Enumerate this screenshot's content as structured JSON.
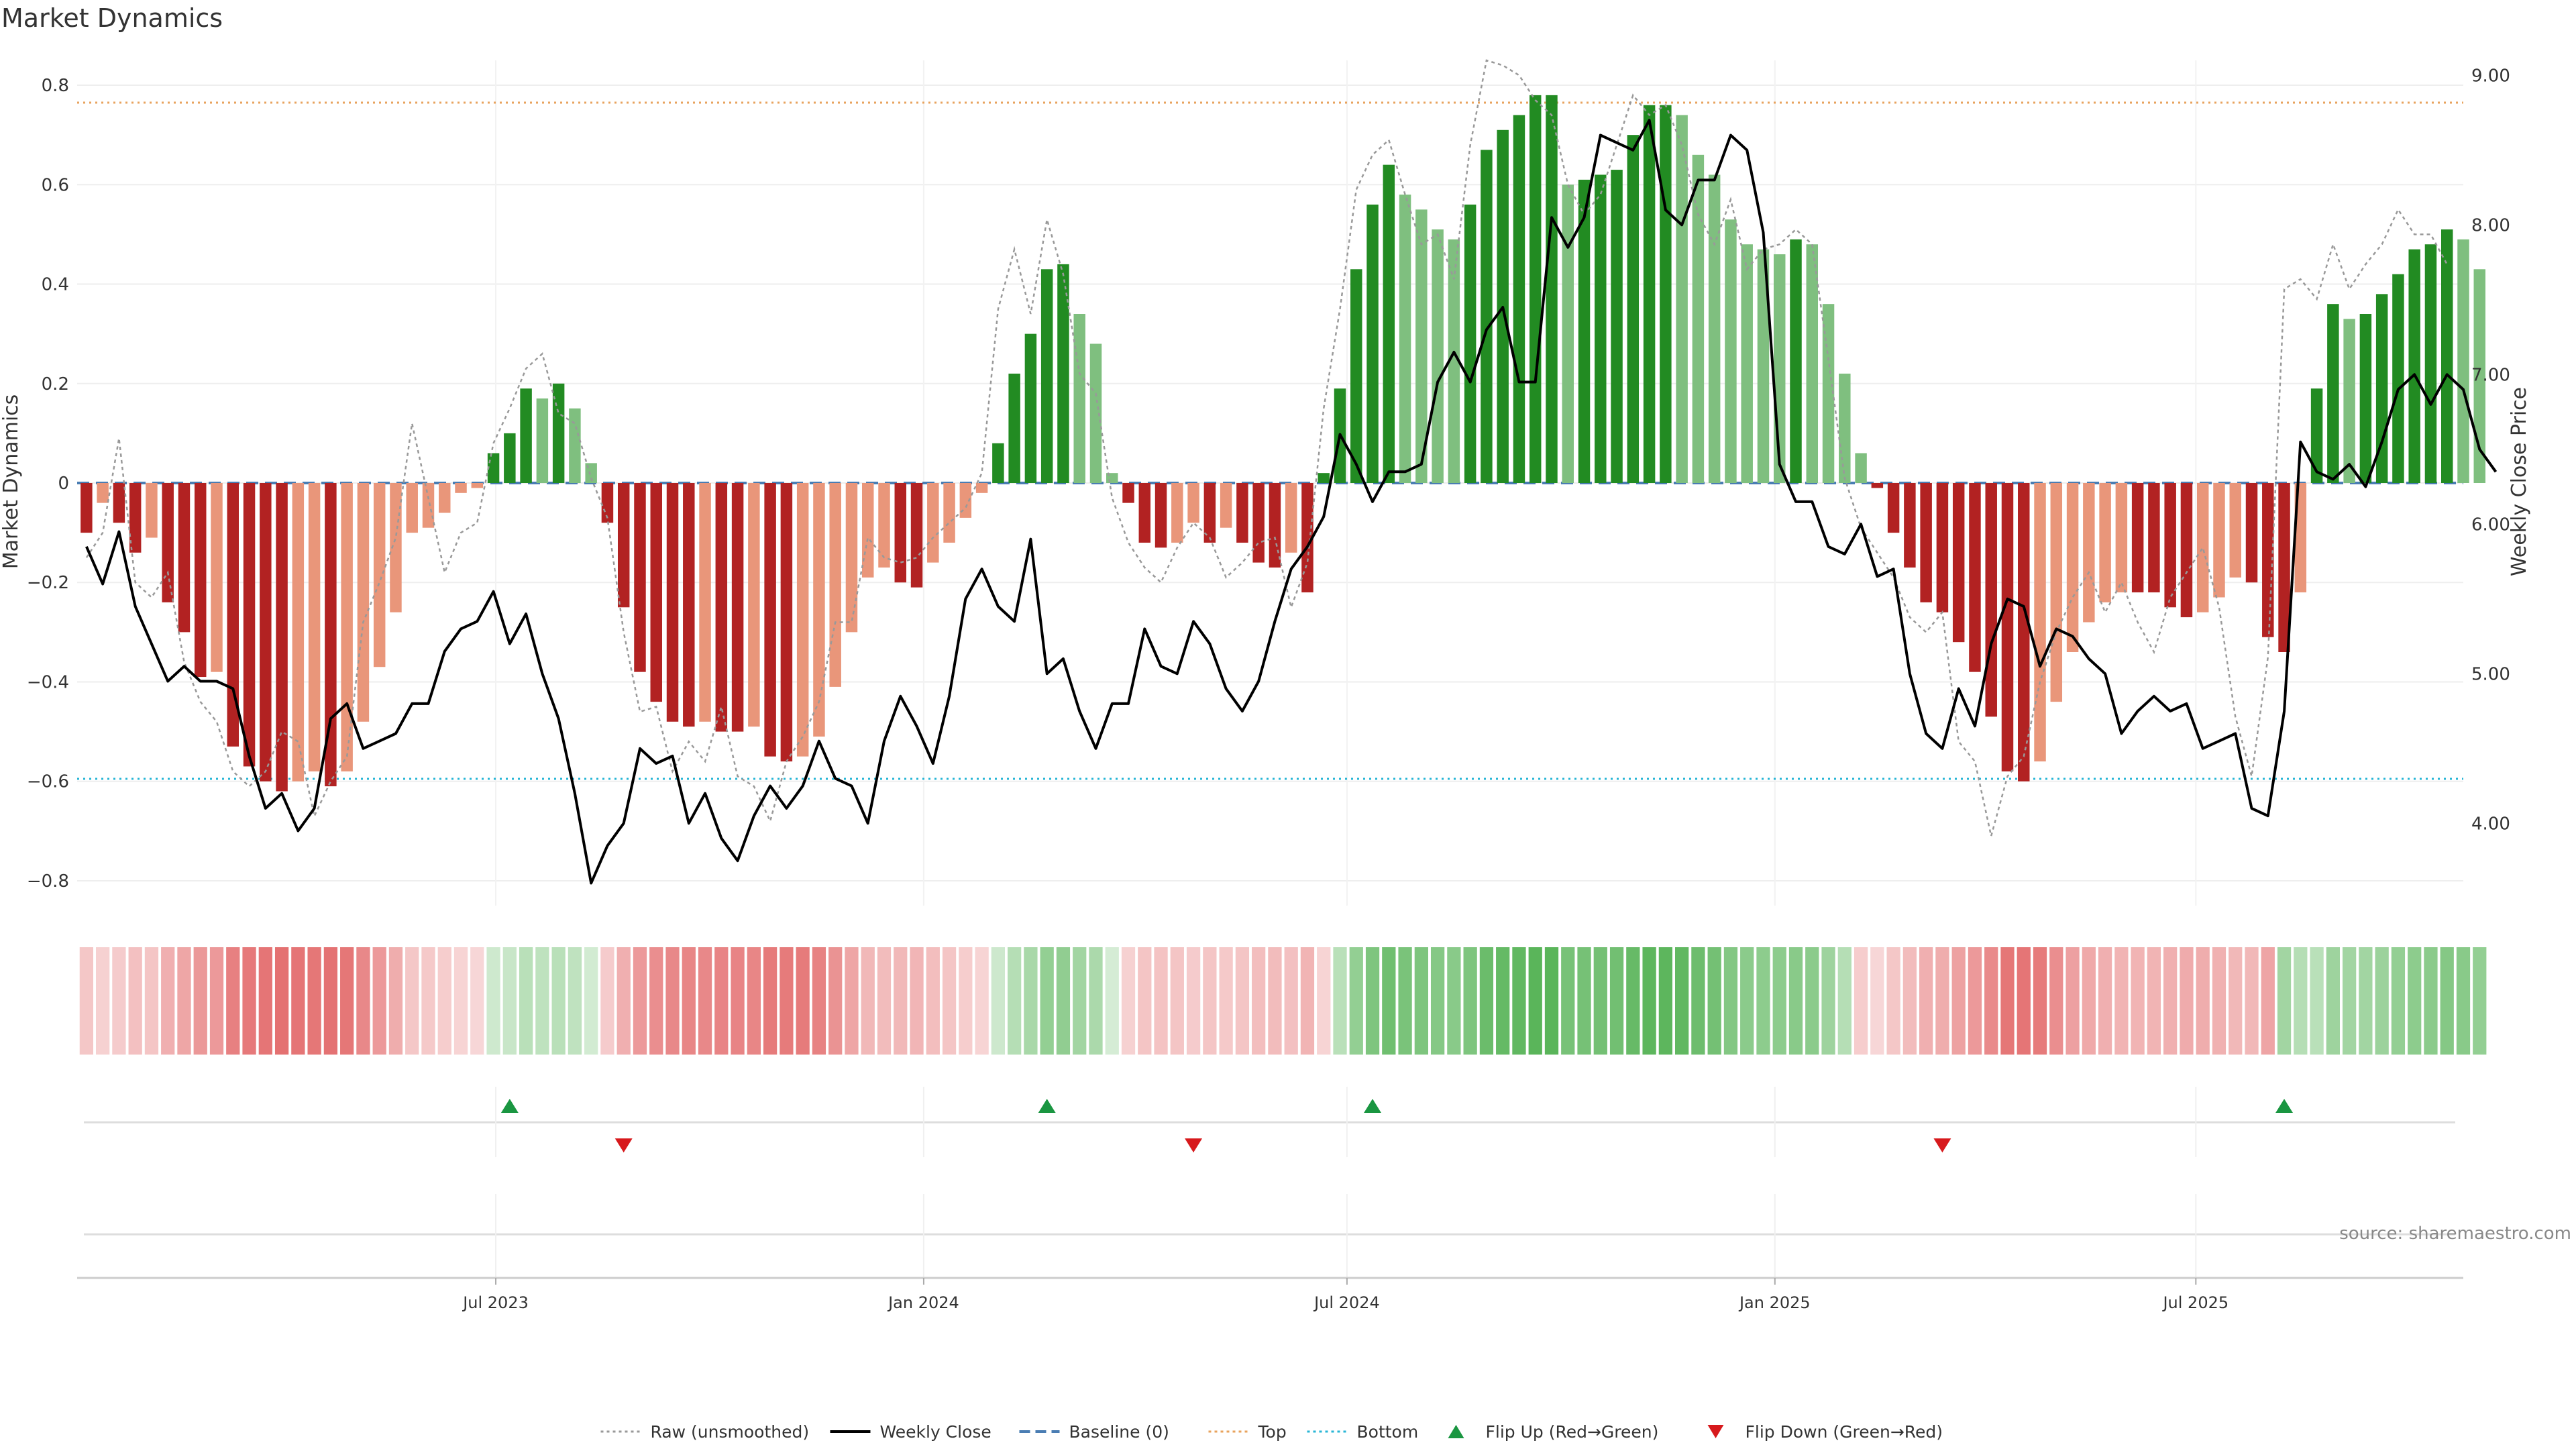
{
  "chart_data": {
    "type": "bar",
    "title": "Market Dynamics",
    "ylabel_left": "Market Dynamics",
    "ylabel_right": "Weekly Close Price",
    "ylim_left": [
      -0.85,
      0.85
    ],
    "ylim_right": [
      3.45,
      9.1
    ],
    "left_ticks": [
      {
        "value": 0.8,
        "label": "0.8"
      },
      {
        "value": 0.6,
        "label": "0.6"
      },
      {
        "value": 0.4,
        "label": "0.4"
      },
      {
        "value": 0.2,
        "label": "0.2"
      },
      {
        "value": 0,
        "label": "0"
      },
      {
        "value": -0.2,
        "label": "−0.2"
      },
      {
        "value": -0.4,
        "label": "−0.4"
      },
      {
        "value": -0.6,
        "label": "−0.6"
      },
      {
        "value": -0.8,
        "label": "−0.8"
      }
    ],
    "right_ticks": [
      {
        "value": 9.0,
        "label": "9.00"
      },
      {
        "value": 8.0,
        "label": "8.00"
      },
      {
        "value": 7.0,
        "label": "7.00"
      },
      {
        "value": 6.0,
        "label": "6.00"
      },
      {
        "value": 5.0,
        "label": "5.00"
      },
      {
        "value": 4.0,
        "label": "4.00"
      }
    ],
    "x_range": [
      "2023-01-02",
      "2025-10-24"
    ],
    "x_ticks": [
      {
        "date": "2023-07-01",
        "label": "Jul 2023"
      },
      {
        "date": "2024-01-01",
        "label": "Jan 2024"
      },
      {
        "date": "2024-07-01",
        "label": "Jul 2024"
      },
      {
        "date": "2025-01-01",
        "label": "Jan 2025"
      },
      {
        "date": "2025-07-01",
        "label": "Jul 2025"
      }
    ],
    "start_date": "2023-01-06",
    "week_step_days": 7,
    "top_line": 0.765,
    "bottom_line": -0.595,
    "baseline": 0,
    "dynamics": [
      -0.1,
      -0.04,
      -0.08,
      -0.14,
      -0.11,
      -0.24,
      -0.3,
      -0.39,
      -0.38,
      -0.53,
      -0.57,
      -0.6,
      -0.62,
      -0.6,
      -0.58,
      -0.61,
      -0.58,
      -0.48,
      -0.37,
      -0.26,
      -0.1,
      -0.09,
      -0.06,
      -0.02,
      -0.01,
      0.06,
      0.1,
      0.19,
      0.17,
      0.2,
      0.15,
      0.04,
      -0.08,
      -0.25,
      -0.38,
      -0.44,
      -0.48,
      -0.49,
      -0.48,
      -0.5,
      -0.5,
      -0.49,
      -0.55,
      -0.56,
      -0.55,
      -0.51,
      -0.41,
      -0.3,
      -0.19,
      -0.17,
      -0.2,
      -0.21,
      -0.16,
      -0.12,
      -0.07,
      -0.02,
      0.08,
      0.22,
      0.3,
      0.43,
      0.44,
      0.34,
      0.28,
      0.02,
      -0.04,
      -0.12,
      -0.13,
      -0.12,
      -0.08,
      -0.12,
      -0.09,
      -0.12,
      -0.16,
      -0.17,
      -0.14,
      -0.22,
      0.02,
      0.19,
      0.43,
      0.56,
      0.64,
      0.58,
      0.55,
      0.51,
      0.49,
      0.56,
      0.67,
      0.71,
      0.74,
      0.78,
      0.78,
      0.6,
      0.61,
      0.62,
      0.63,
      0.7,
      0.76,
      0.76,
      0.74,
      0.66,
      0.62,
      0.53,
      0.48,
      0.47,
      0.46,
      0.49,
      0.48,
      0.36,
      0.22,
      0.06,
      -0.01,
      -0.1,
      -0.17,
      -0.24,
      -0.26,
      -0.32,
      -0.38,
      -0.47,
      -0.58,
      -0.6,
      -0.56,
      -0.44,
      -0.34,
      -0.28,
      -0.24,
      -0.22,
      -0.22,
      -0.22,
      -0.25,
      -0.27,
      -0.26,
      -0.23,
      -0.19,
      -0.2,
      -0.31,
      -0.34,
      -0.22,
      0.19,
      0.36,
      0.33,
      0.34,
      0.38,
      0.42,
      0.47,
      0.48,
      0.51,
      0.49,
      0.43
    ],
    "raw": [
      -0.15,
      -0.1,
      0.09,
      -0.2,
      -0.23,
      -0.18,
      -0.36,
      -0.44,
      -0.48,
      -0.58,
      -0.61,
      -0.58,
      -0.5,
      -0.52,
      -0.67,
      -0.6,
      -0.55,
      -0.28,
      -0.2,
      -0.11,
      0.12,
      -0.03,
      -0.18,
      -0.1,
      -0.08,
      0.08,
      0.15,
      0.23,
      0.26,
      0.14,
      0.12,
      0.01,
      -0.07,
      -0.3,
      -0.46,
      -0.45,
      -0.58,
      -0.52,
      -0.56,
      -0.45,
      -0.59,
      -0.61,
      -0.68,
      -0.56,
      -0.51,
      -0.44,
      -0.28,
      -0.28,
      -0.11,
      -0.15,
      -0.16,
      -0.15,
      -0.11,
      -0.08,
      -0.05,
      0.02,
      0.35,
      0.47,
      0.34,
      0.53,
      0.42,
      0.22,
      0.18,
      -0.03,
      -0.12,
      -0.17,
      -0.2,
      -0.13,
      -0.08,
      -0.11,
      -0.19,
      -0.16,
      -0.12,
      -0.11,
      -0.25,
      -0.16,
      0.15,
      0.35,
      0.59,
      0.66,
      0.69,
      0.58,
      0.48,
      0.5,
      0.41,
      0.68,
      0.85,
      0.84,
      0.82,
      0.77,
      0.74,
      0.6,
      0.54,
      0.58,
      0.68,
      0.78,
      0.74,
      0.76,
      0.68,
      0.54,
      0.48,
      0.57,
      0.43,
      0.47,
      0.48,
      0.51,
      0.48,
      0.25,
      0.01,
      -0.09,
      -0.14,
      -0.19,
      -0.27,
      -0.3,
      -0.26,
      -0.52,
      -0.56,
      -0.71,
      -0.59,
      -0.55,
      -0.4,
      -0.3,
      -0.23,
      -0.18,
      -0.26,
      -0.2,
      -0.28,
      -0.34,
      -0.23,
      -0.18,
      -0.13,
      -0.25,
      -0.47,
      -0.59,
      -0.35,
      0.39,
      0.41,
      0.37,
      0.48,
      0.39,
      0.44,
      0.48,
      0.55,
      0.5,
      0.5,
      0.44
    ],
    "weekly_close": [
      5.85,
      5.6,
      5.95,
      5.45,
      5.2,
      4.95,
      5.05,
      4.95,
      4.95,
      4.9,
      4.45,
      4.1,
      4.2,
      3.95,
      4.1,
      4.7,
      4.8,
      4.5,
      4.55,
      4.6,
      4.8,
      4.8,
      5.15,
      5.3,
      5.35,
      5.55,
      5.2,
      5.4,
      5.0,
      4.7,
      4.2,
      3.6,
      3.85,
      4.0,
      4.5,
      4.4,
      4.45,
      4.0,
      4.2,
      3.9,
      3.75,
      4.05,
      4.25,
      4.1,
      4.25,
      4.55,
      4.3,
      4.25,
      4.0,
      4.55,
      4.85,
      4.65,
      4.4,
      4.85,
      5.5,
      5.7,
      5.45,
      5.35,
      5.9,
      5.0,
      5.1,
      4.75,
      4.5,
      4.8,
      4.8,
      5.3,
      5.05,
      5.0,
      5.35,
      5.2,
      4.9,
      4.75,
      4.95,
      5.35,
      5.7,
      5.85,
      6.05,
      6.6,
      6.4,
      6.15,
      6.35,
      6.35,
      6.4,
      6.95,
      7.15,
      6.95,
      7.3,
      7.45,
      6.95,
      6.95,
      8.05,
      7.85,
      8.05,
      8.6,
      8.55,
      8.5,
      8.7,
      8.1,
      8.0,
      8.3,
      8.3,
      8.6,
      8.5,
      7.95,
      6.4,
      6.15,
      6.15,
      5.85,
      5.8,
      6.0,
      5.65,
      5.7,
      5.0,
      4.6,
      4.5,
      4.9,
      4.65,
      5.2,
      5.5,
      5.45,
      5.05,
      5.3,
      5.25,
      5.1,
      5.0,
      4.6,
      4.75,
      4.85,
      4.75,
      4.8,
      4.5,
      4.55,
      4.6,
      4.1,
      4.05,
      4.75,
      6.55,
      6.35,
      6.3,
      6.4,
      6.25,
      6.55,
      6.9,
      7.0,
      6.8,
      7.0,
      6.9,
      6.5,
      6.35
    ],
    "regime_strip": {
      "color_stops": [
        {
          "upto": 24,
          "color": "#d62728"
        },
        {
          "upto": 31,
          "color": "#2ca02c"
        },
        {
          "upto": 55,
          "color": "#d62728"
        },
        {
          "upto": 63,
          "color": "#2ca02c"
        },
        {
          "upto": 76,
          "color": "#d62728"
        },
        {
          "upto": 108,
          "color": "#2ca02c"
        },
        {
          "upto": 134,
          "color": "#d62728"
        },
        {
          "upto": 144,
          "color": "#2ca02c"
        }
      ]
    },
    "flips": [
      {
        "date": "2023-07-07",
        "direction": "up"
      },
      {
        "date": "2023-08-25",
        "direction": "down"
      },
      {
        "date": "2024-02-23",
        "direction": "up"
      },
      {
        "date": "2024-04-26",
        "direction": "down"
      },
      {
        "date": "2024-07-12",
        "direction": "up"
      },
      {
        "date": "2025-03-14",
        "direction": "down"
      },
      {
        "date": "2025-08-08",
        "direction": "up"
      }
    ],
    "colors": {
      "strong_green": "#228b22",
      "weak_green": "#7fbf7f",
      "strong_red": "#b22222",
      "weak_red": "#e9967a",
      "raw": "#999999",
      "weekly_close": "#000000",
      "baseline": "#4a7db3",
      "top": "#e8a35e",
      "bottom": "#29b6d6",
      "flip_up": "#1a9641",
      "flip_down": "#d7191c"
    },
    "legend": [
      {
        "key": "raw",
        "label": "Raw (unsmoothed)",
        "style": "dotted-line"
      },
      {
        "key": "weekly_close",
        "label": "Weekly Close",
        "style": "solid-line"
      },
      {
        "key": "baseline",
        "label": "Baseline (0)",
        "style": "dashed-line"
      },
      {
        "key": "top",
        "label": "Top",
        "style": "dotted-line"
      },
      {
        "key": "bottom",
        "label": "Bottom",
        "style": "dotted-line"
      },
      {
        "key": "flip_up",
        "label": "Flip Up (Red→Green)",
        "style": "triangle-up"
      },
      {
        "key": "flip_down",
        "label": "Flip Down (Green→Red)",
        "style": "triangle-down"
      }
    ],
    "legend_position": "bottom-center",
    "grid": true
  },
  "source_note": "source: sharemaestro.com"
}
